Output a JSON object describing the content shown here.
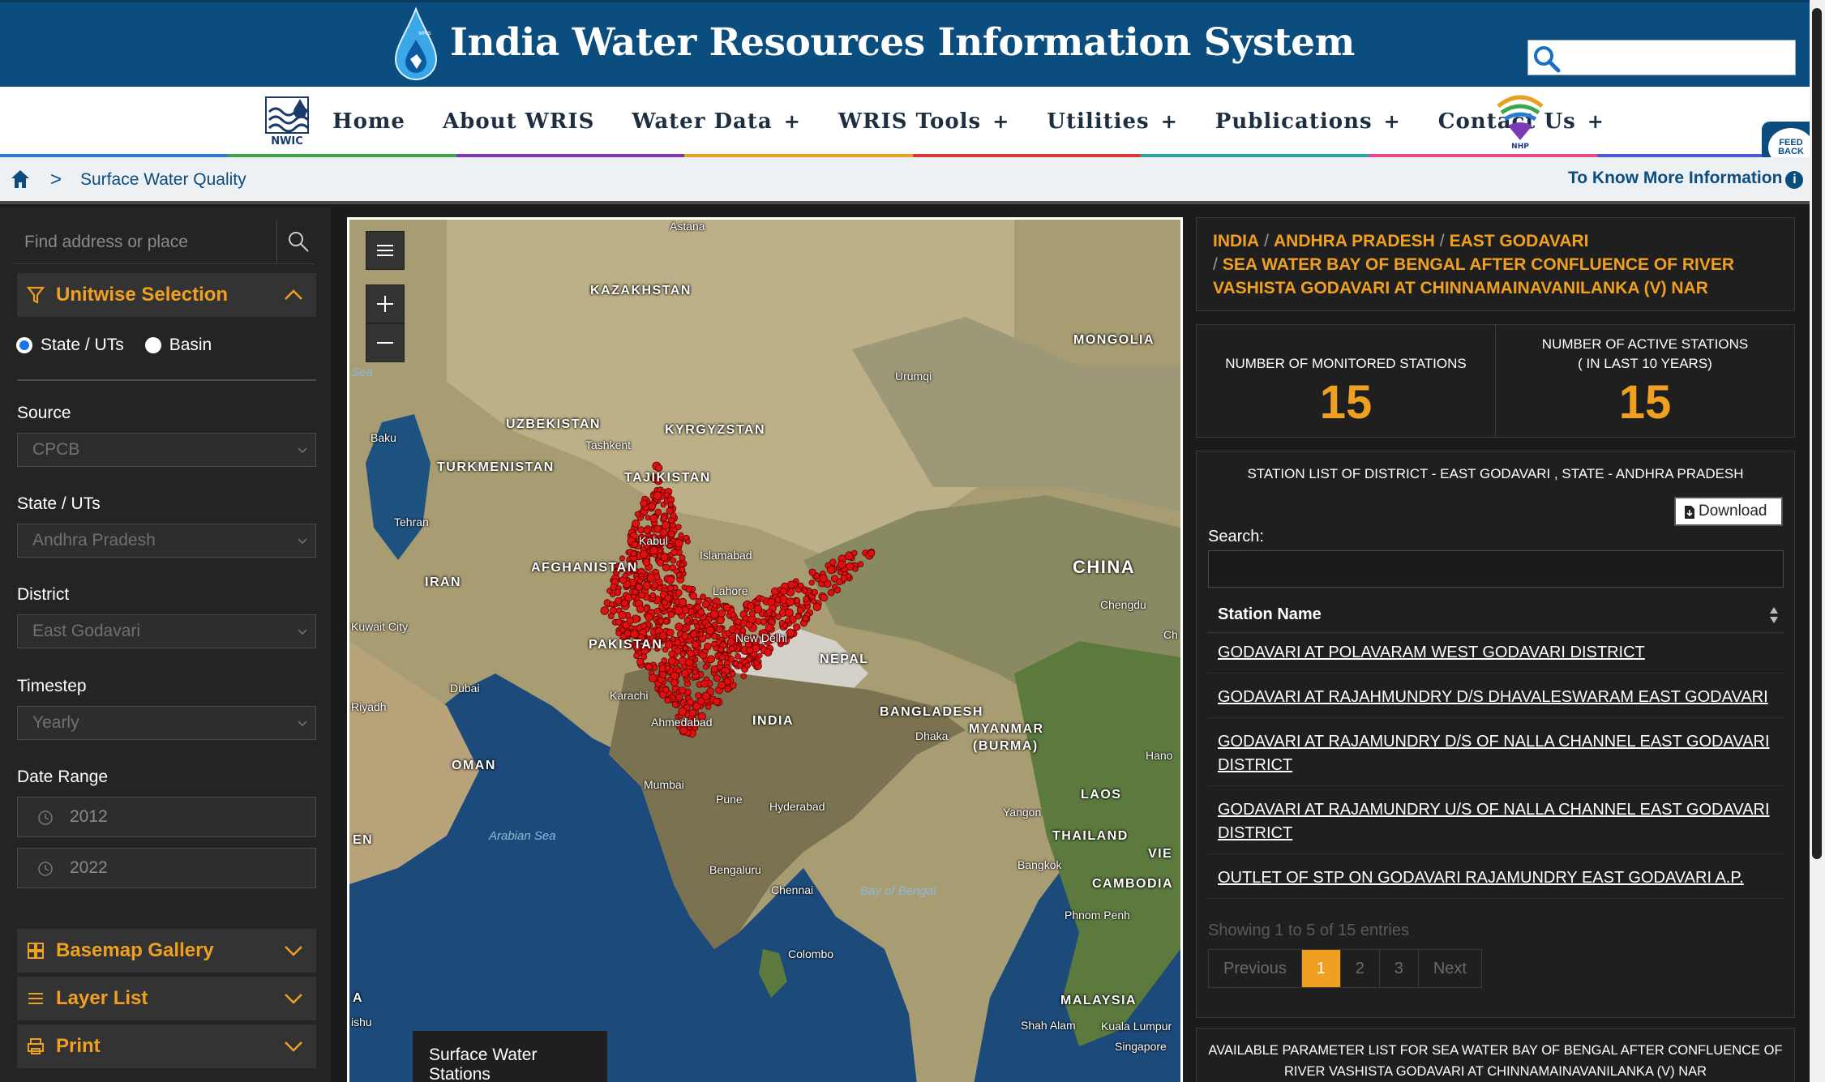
{
  "header": {
    "site_title": "India Water Resources Information System",
    "search_placeholder": ""
  },
  "nav": {
    "items": [
      {
        "label": "Home",
        "has_submenu": false
      },
      {
        "label": "About WRIS",
        "has_submenu": false
      },
      {
        "label": "Water Data",
        "has_submenu": true
      },
      {
        "label": "WRIS Tools",
        "has_submenu": true
      },
      {
        "label": "Utilities",
        "has_submenu": true
      },
      {
        "label": "Publications",
        "has_submenu": true
      },
      {
        "label": "Contact Us",
        "has_submenu": true
      }
    ],
    "plus_glyph": "+"
  },
  "logos": {
    "nwic": "NWIC",
    "nhp": "NHP",
    "drop": "WRIS"
  },
  "feedback": {
    "line1": "FEED",
    "line2": "BACK"
  },
  "breadcrumb": {
    "current": "Surface Water Quality",
    "separator": ">",
    "know_more": "To Know More Information",
    "info_glyph": "i"
  },
  "left_panel": {
    "search_placeholder": "Find address or place",
    "unitwise_title": "Unitwise Selection",
    "radio_options": [
      {
        "label": "State / UTs",
        "selected": true
      },
      {
        "label": "Basin",
        "selected": false
      }
    ],
    "fields": [
      {
        "label": "Source",
        "value": "CPCB"
      },
      {
        "label": "State / UTs",
        "value": "Andhra Pradesh"
      },
      {
        "label": "District",
        "value": "East Godavari"
      },
      {
        "label": "Timestep",
        "value": "Yearly"
      }
    ],
    "date_range": {
      "label": "Date Range",
      "from": "2012",
      "to": "2022"
    },
    "sections": [
      {
        "label": "Basemap Gallery",
        "icon": "gallery-icon"
      },
      {
        "label": "Layer List",
        "icon": "list-icon"
      },
      {
        "label": "Print",
        "icon": "print-icon"
      }
    ]
  },
  "map": {
    "countries": [
      {
        "name": "KAZAKHSTAN"
      },
      {
        "name": "MONGOLIA"
      },
      {
        "name": "UZBEKISTAN"
      },
      {
        "name": "KYRGYZSTAN"
      },
      {
        "name": "TURKMENISTAN"
      },
      {
        "name": "TAJIKISTAN"
      },
      {
        "name": "AFGHANISTAN"
      },
      {
        "name": "IRAN"
      },
      {
        "name": "CHINA"
      },
      {
        "name": "PAKISTAN"
      },
      {
        "name": "NEPAL"
      },
      {
        "name": "INDIA"
      },
      {
        "name": "BANGLADESH"
      },
      {
        "name": "MYANMAR"
      },
      {
        "name": "(BURMA)"
      },
      {
        "name": "OMAN"
      },
      {
        "name": "LAOS"
      },
      {
        "name": "THAILAND"
      },
      {
        "name": "CAMBODIA"
      },
      {
        "name": "MALAYSIA"
      },
      {
        "name": "VIE"
      },
      {
        "name": "EN"
      },
      {
        "name": "A"
      }
    ],
    "cities": [
      {
        "name": "Astana"
      },
      {
        "name": "Urumqi"
      },
      {
        "name": "Baku"
      },
      {
        "name": "Tashkent"
      },
      {
        "name": "Tehran"
      },
      {
        "name": "Kabul"
      },
      {
        "name": "Islamabad"
      },
      {
        "name": "Lahore"
      },
      {
        "name": "New Delhi"
      },
      {
        "name": "Kuwait City"
      },
      {
        "name": "Chengdu"
      },
      {
        "name": "Dubai"
      },
      {
        "name": "Karachi"
      },
      {
        "name": "Ahmedabad"
      },
      {
        "name": "Dhaka"
      },
      {
        "name": "Mumbai"
      },
      {
        "name": "Pune"
      },
      {
        "name": "Hyderabad"
      },
      {
        "name": "Yangon"
      },
      {
        "name": "Bangkok"
      },
      {
        "name": "Bengaluru"
      },
      {
        "name": "Chennai"
      },
      {
        "name": "Phnom Penh"
      },
      {
        "name": "Colombo"
      },
      {
        "name": "Shah Alam"
      },
      {
        "name": "Kuala Lumpur"
      },
      {
        "name": "Singapore"
      },
      {
        "name": "Hano"
      },
      {
        "name": "Ch"
      },
      {
        "name": "Riyadh"
      },
      {
        "name": "ishu"
      }
    ],
    "seas": [
      {
        "name": "Arabian Sea"
      },
      {
        "name": "Bay of Bengal"
      },
      {
        "name": "Sea"
      }
    ],
    "legend": {
      "line1": "Surface Water",
      "line2": "Stations"
    },
    "colors": {
      "station": "#e01010",
      "sea": "#1c4a7a",
      "land": "#a89c72"
    }
  },
  "right_panel": {
    "location": {
      "parts": [
        "INDIA",
        "ANDHRA PRADESH",
        "EAST GODAVARI"
      ],
      "station": "SEA WATER BAY OF BENGAL AFTER CONFLUENCE OF RIVER VASHISTA GODAVARI AT CHINNAMAINAVANILANKA (V) NAR",
      "separator": "/"
    },
    "stats": {
      "monitored_label": "NUMBER OF MONITORED STATIONS",
      "monitored_value": "15",
      "active_label_1": "NUMBER OF ACTIVE STATIONS",
      "active_label_2": "( IN LAST 10 YEARS)",
      "active_value": "15"
    },
    "station_list": {
      "title": "STATION LIST OF DISTRICT - EAST GODAVARI , STATE - ANDHRA PRADESH",
      "download_label": "Download",
      "search_label": "Search:",
      "search_value": "",
      "column": "Station Name",
      "rows": [
        "GODAVARI AT POLAVARAM WEST GODAVARI DISTRICT",
        "GODAVARI AT RAJAHMUNDRY D/S DHAVALESWARAM EAST GODAVARI",
        "GODAVARI AT RAJAMUNDRY D/S OF NALLA CHANNEL EAST GODAVARI DISTRICT",
        "GODAVARI AT RAJAMUNDRY U/S OF NALLA CHANNEL EAST GODAVARI DISTRICT",
        "OUTLET OF STP ON GODAVARI RAJAMUNDRY EAST GODAVARI A.P."
      ],
      "showing": "Showing 1 to 5 of 15 entries",
      "pager": {
        "prev": "Previous",
        "pages": [
          "1",
          "2",
          "3"
        ],
        "active": "1",
        "next": "Next"
      }
    },
    "parameter_list": {
      "title": "AVAILABLE PARAMETER LIST FOR SEA WATER BAY OF BENGAL AFTER CONFLUENCE OF RIVER VASHISTA GODAVARI AT CHINNAMAINAVANILANKA (V) NAR"
    }
  },
  "colors": {
    "header_blue": "#0b4d7e",
    "accent_orange": "#f0a020",
    "panel_dark": "#242424"
  }
}
